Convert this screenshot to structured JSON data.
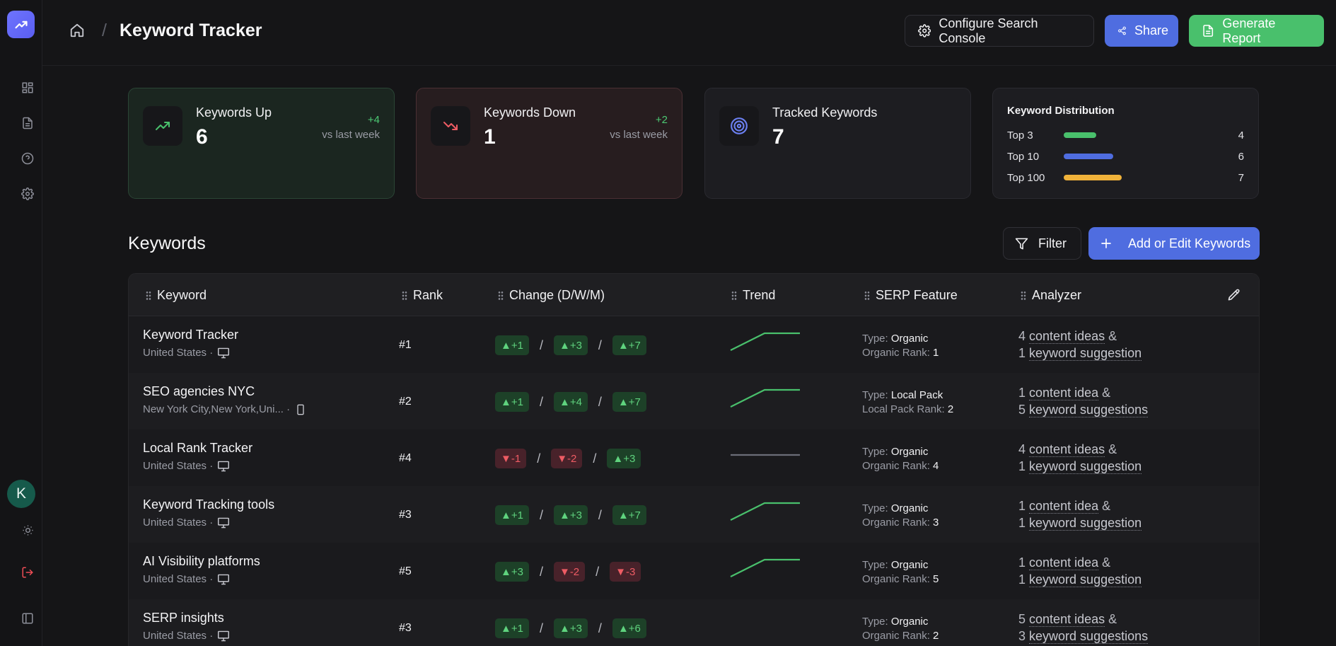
{
  "header": {
    "title": "Keyword Tracker",
    "configure_label": "Configure Search Console",
    "share_label": "Share",
    "report_label": "Generate Report"
  },
  "sidebar": {
    "avatar_letter": "K"
  },
  "cards": {
    "up": {
      "label": "Keywords Up",
      "value": "6",
      "delta": "+4",
      "sub": "vs last week"
    },
    "down": {
      "label": "Keywords Down",
      "value": "1",
      "delta": "+2",
      "sub": "vs last week"
    },
    "tracked": {
      "label": "Tracked Keywords",
      "value": "7"
    }
  },
  "distribution": {
    "title": "Keyword Distribution",
    "rows": [
      {
        "label": "Top 3",
        "count": "4",
        "fraction": 0.19,
        "color": "#49c06c"
      },
      {
        "label": "Top 10",
        "count": "6",
        "fraction": 0.29,
        "color": "#4f6de0"
      },
      {
        "label": "Top 100",
        "count": "7",
        "fraction": 0.34,
        "color": "#f0b23a"
      }
    ]
  },
  "keywords": {
    "title": "Keywords",
    "filter_label": "Filter",
    "add_label": "Add or Edit Keywords",
    "columns": [
      "Keyword",
      "Rank",
      "Change (D/W/M)",
      "Trend",
      "SERP Feature",
      "Analyzer"
    ],
    "rows": [
      {
        "keyword": "Keyword Tracker",
        "location": "United States ·",
        "device": "desktop",
        "rank": "#1",
        "changes": [
          {
            "t": "▲+1",
            "d": "up"
          },
          {
            "t": "▲+3",
            "d": "up"
          },
          {
            "t": "▲+7",
            "d": "up"
          }
        ],
        "trend": [
          3,
          1,
          1
        ],
        "trend_color": "#49c06c",
        "serp_type": "Organic",
        "serp_rank_label": "Organic Rank:",
        "serp_rank": "1",
        "ideas_count": "4",
        "ideas_label": "content ideas",
        "sugg_count": "1",
        "sugg_label": "keyword suggestion"
      },
      {
        "keyword": "SEO agencies NYC",
        "location": "New York City,New York,Uni... ·",
        "device": "mobile",
        "rank": "#2",
        "changes": [
          {
            "t": "▲+1",
            "d": "up"
          },
          {
            "t": "▲+4",
            "d": "up"
          },
          {
            "t": "▲+7",
            "d": "up"
          }
        ],
        "trend": [
          3,
          1,
          1
        ],
        "trend_color": "#49c06c",
        "serp_type": "Local Pack",
        "serp_rank_label": "Local Pack Rank:",
        "serp_rank": "2",
        "ideas_count": "1",
        "ideas_label": "content idea",
        "sugg_count": "5",
        "sugg_label": "keyword suggestions"
      },
      {
        "keyword": "Local Rank Tracker",
        "location": "United States ·",
        "device": "desktop",
        "rank": "#4",
        "changes": [
          {
            "t": "▼-1",
            "d": "down"
          },
          {
            "t": "▼-2",
            "d": "down"
          },
          {
            "t": "▲+3",
            "d": "up"
          }
        ],
        "trend": [
          2,
          2,
          2
        ],
        "trend_color": "#6b6d78",
        "serp_type": "Organic",
        "serp_rank_label": "Organic Rank:",
        "serp_rank": "4",
        "ideas_count": "4",
        "ideas_label": "content ideas",
        "sugg_count": "1",
        "sugg_label": "keyword suggestion"
      },
      {
        "keyword": "Keyword Tracking tools",
        "location": "United States ·",
        "device": "desktop",
        "rank": "#3",
        "changes": [
          {
            "t": "▲+1",
            "d": "up"
          },
          {
            "t": "▲+3",
            "d": "up"
          },
          {
            "t": "▲+7",
            "d": "up"
          }
        ],
        "trend": [
          3,
          1,
          1
        ],
        "trend_color": "#49c06c",
        "serp_type": "Organic",
        "serp_rank_label": "Organic Rank:",
        "serp_rank": "3",
        "ideas_count": "1",
        "ideas_label": "content idea",
        "sugg_count": "1",
        "sugg_label": "keyword suggestion"
      },
      {
        "keyword": "AI Visibility platforms",
        "location": "United States ·",
        "device": "desktop",
        "rank": "#5",
        "changes": [
          {
            "t": "▲+3",
            "d": "up"
          },
          {
            "t": "▼-2",
            "d": "down"
          },
          {
            "t": "▼-3",
            "d": "down"
          }
        ],
        "trend": [
          3,
          1,
          1
        ],
        "trend_color": "#49c06c",
        "serp_type": "Organic",
        "serp_rank_label": "Organic Rank:",
        "serp_rank": "5",
        "ideas_count": "1",
        "ideas_label": "content idea",
        "sugg_count": "1",
        "sugg_label": "keyword suggestion"
      },
      {
        "keyword": "SERP insights",
        "location": "United States ·",
        "device": "desktop",
        "rank": "#3",
        "changes": [
          {
            "t": "▲+1",
            "d": "up"
          },
          {
            "t": "▲+3",
            "d": "up"
          },
          {
            "t": "▲+6",
            "d": "up"
          }
        ],
        "trend": [],
        "trend_color": "#49c06c",
        "serp_type": "Organic",
        "serp_rank_label": "Organic Rank:",
        "serp_rank": "2",
        "ideas_count": "5",
        "ideas_label": "content ideas",
        "sugg_count": "3",
        "sugg_label": "keyword suggestions"
      }
    ]
  }
}
